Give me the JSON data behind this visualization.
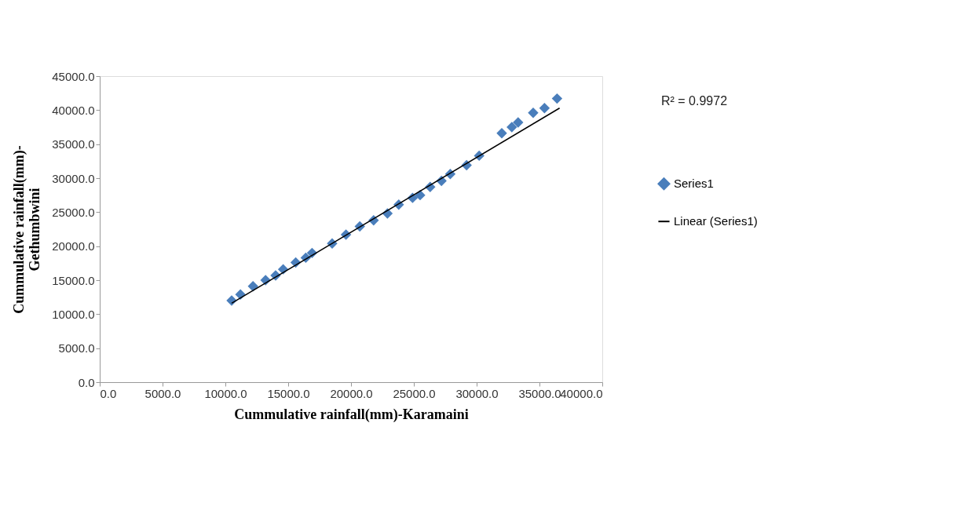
{
  "chart_data": {
    "type": "scatter",
    "xlabel": "Cummulative rainfall(mm)-Karamaini",
    "ylabel": "Cummulative rainfall(mm)-\nGethumbwini",
    "xlim": [
      0,
      40000
    ],
    "ylim": [
      0,
      45000
    ],
    "xticks": [
      {
        "value": 0,
        "label": "0.0"
      },
      {
        "value": 5000,
        "label": "5000.0"
      },
      {
        "value": 10000,
        "label": "10000.0"
      },
      {
        "value": 15000,
        "label": "15000.0"
      },
      {
        "value": 20000,
        "label": "20000.0"
      },
      {
        "value": 25000,
        "label": "25000.0"
      },
      {
        "value": 30000,
        "label": "30000.0"
      },
      {
        "value": 35000,
        "label": "35000.0"
      },
      {
        "value": 40000,
        "label": "40000.0"
      }
    ],
    "yticks": [
      {
        "value": 0,
        "label": "0.0"
      },
      {
        "value": 5000,
        "label": "5000.0"
      },
      {
        "value": 10000,
        "label": "10000.0"
      },
      {
        "value": 15000,
        "label": "15000.0"
      },
      {
        "value": 20000,
        "label": "20000.0"
      },
      {
        "value": 25000,
        "label": "25000.0"
      },
      {
        "value": 30000,
        "label": "30000.0"
      },
      {
        "value": 35000,
        "label": "35000.0"
      },
      {
        "value": 40000,
        "label": "40000.0"
      },
      {
        "value": 45000,
        "label": "45000.0"
      }
    ],
    "grid": false,
    "legend": "right",
    "annotations": [
      "R² = 0.9972"
    ],
    "series": [
      {
        "name": "Series1",
        "marker": "diamond",
        "color": "#4a7ebb",
        "x": [
          10500,
          11200,
          12200,
          13200,
          14000,
          14600,
          15600,
          16400,
          16900,
          18500,
          19600,
          20700,
          21800,
          22900,
          23800,
          24900,
          25500,
          26300,
          27200,
          27900,
          29200,
          30200,
          32000,
          32800,
          33300,
          34500,
          35400,
          36400
        ],
        "values": [
          12000,
          12900,
          14100,
          15000,
          15700,
          16600,
          17600,
          18300,
          19000,
          20400,
          21700,
          22900,
          23800,
          24800,
          26100,
          27100,
          27500,
          28700,
          29600,
          30600,
          31900,
          33300,
          36600,
          37500,
          38200,
          39600,
          40300,
          41700
        ]
      },
      {
        "name": "Linear (Series1)",
        "type": "line",
        "line_style": "solid",
        "color": "#000000",
        "x": [
          10500,
          36600
        ],
        "values": [
          11600,
          40300
        ]
      }
    ]
  }
}
